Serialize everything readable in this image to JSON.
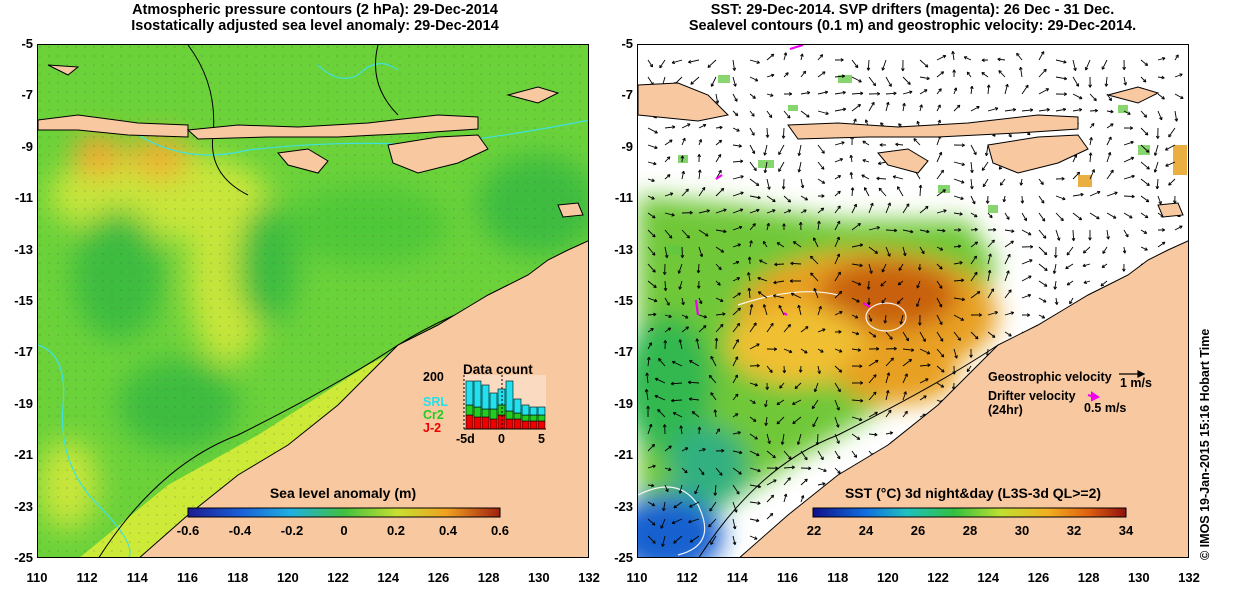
{
  "left_panel": {
    "title_line1": "Atmospheric pressure contours (2 hPa): 29-Dec-2014",
    "title_line2": "Isostatically adjusted sea level anomaly: 29-Dec-2014",
    "colorbar_label": "Sea level anomaly (m)",
    "colorbar_ticks": [
      "-0.6",
      "-0.4",
      "-0.2",
      "0",
      "0.2",
      "0.4",
      "0.6"
    ],
    "data_count": {
      "title": "Data count",
      "max_label": "200",
      "series_labels": [
        "SRL",
        "Cr2",
        "J-2"
      ],
      "series_colors": [
        "#22e0ee",
        "#22cc22",
        "#ee0000"
      ],
      "x_labels": [
        "-5d",
        "0",
        "5"
      ]
    }
  },
  "right_panel": {
    "title_line1": "SST: 29-Dec-2014. SVP drifters (magenta): 26 Dec - 31 Dec.",
    "title_line2": "Sealevel contours (0.1 m) and geostrophic velocity: 29-Dec-2014.",
    "colorbar_label": "SST (°C) 3d night&day (L3S-3d QL>=2)",
    "colorbar_ticks": [
      "22",
      "24",
      "26",
      "28",
      "30",
      "32",
      "34"
    ],
    "legend": {
      "geostrophic_label": "Geostrophic velocity",
      "geostrophic_scale": "1 m/s",
      "drifter_label_line1": "Drifter velocity",
      "drifter_label_line2": "(24hr)",
      "drifter_scale": "0.5 m/s"
    }
  },
  "axes": {
    "y_ticks": [
      "-5",
      "-7",
      "-9",
      "-11",
      "-13",
      "-15",
      "-17",
      "-19",
      "-21",
      "-23",
      "-25"
    ],
    "x_ticks": [
      "110",
      "112",
      "114",
      "116",
      "118",
      "120",
      "122",
      "124",
      "126",
      "128",
      "130",
      "132"
    ]
  },
  "credit": "© IMOS 19-Jan-2015 15:16 Hobart Time",
  "colors": {
    "land": "#f8c8a0",
    "ssh_base": "#6bd23a",
    "ssh_high": "#d6ea3a",
    "ssh_peak": "#f0a830",
    "sst_warm": "#e8a020",
    "sst_hot": "#c86010",
    "sst_mid": "#80d040",
    "sst_cool": "#1860d0",
    "contour_cyan": "#40e0e0"
  }
}
